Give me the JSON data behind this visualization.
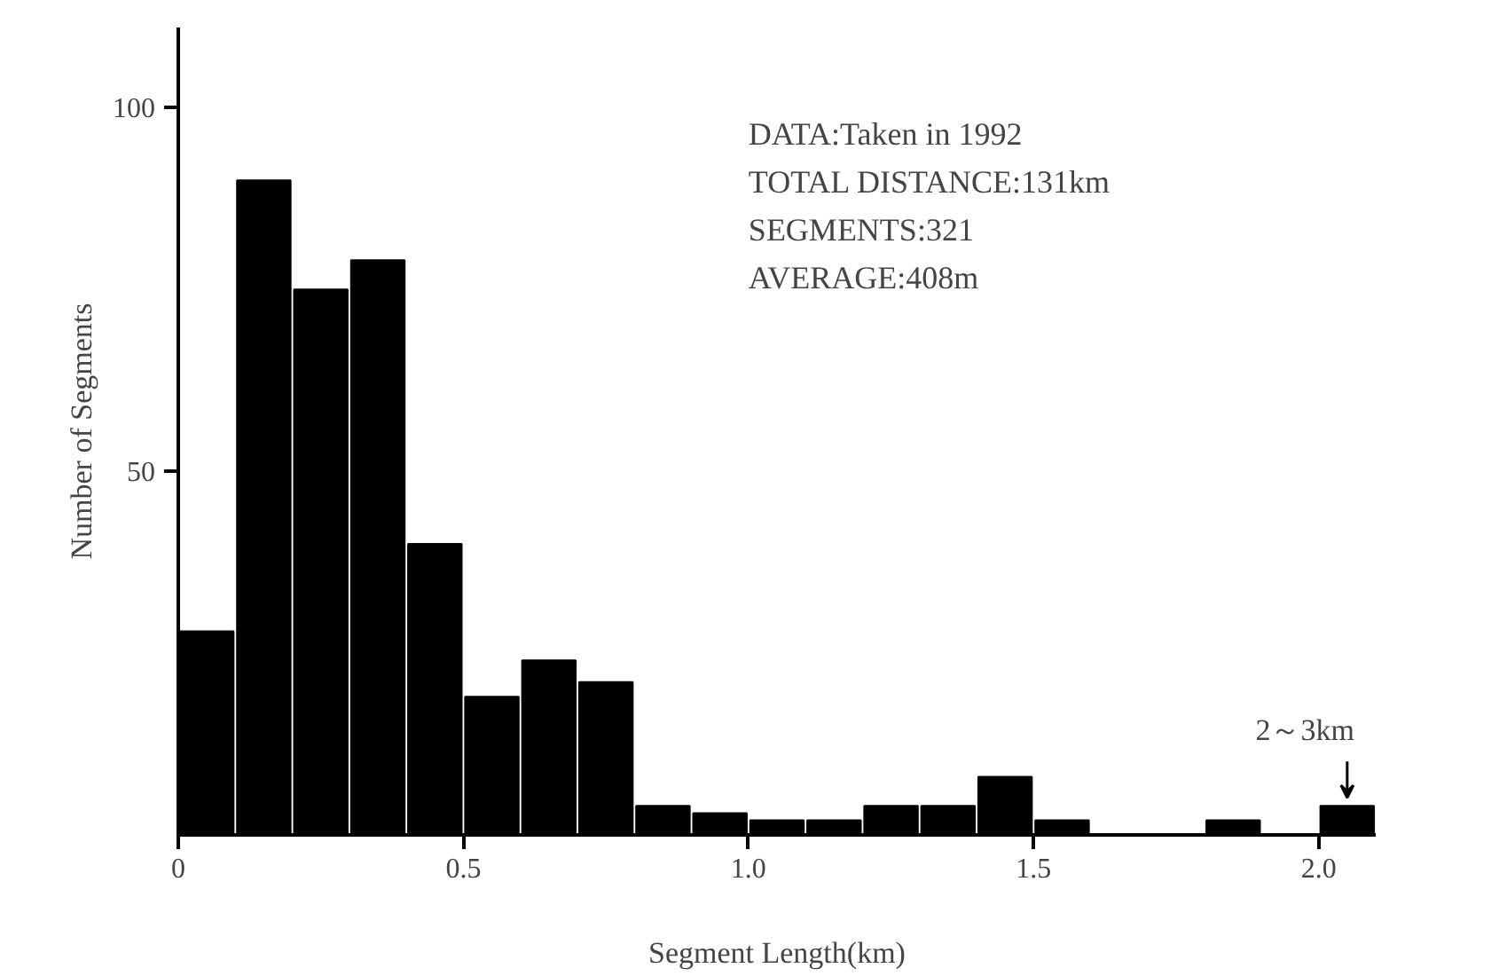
{
  "chart_data": {
    "type": "histogram",
    "xlabel": "Segment Length(km)",
    "ylabel": "Number of Segments",
    "bins": [
      0,
      0.1,
      0.2,
      0.3,
      0.4,
      0.5,
      0.6,
      0.7,
      0.8,
      0.9,
      1.0,
      1.1,
      1.2,
      1.3,
      1.4,
      1.5,
      1.6,
      1.7,
      1.8,
      1.9,
      2.0,
      2.1
    ],
    "values": [
      28,
      90,
      75,
      79,
      40,
      19,
      24,
      21,
      4,
      3,
      2,
      2,
      4,
      4,
      8,
      2,
      0,
      0,
      2,
      0,
      4
    ],
    "color": "#000000",
    "xlim": [
      0,
      2.1
    ],
    "ylim": [
      0,
      111
    ],
    "xticks": [
      0,
      0.5,
      {
        "value": 1.0,
        "label": "1.0"
      },
      1.5,
      {
        "value": 2.0,
        "label": "2.0"
      }
    ],
    "yticks": [
      50,
      100
    ],
    "grid": false,
    "annotations": [
      "DATA:Taken in 1992",
      "TOTAL DISTANCE:131km",
      "SEGMENTS:321",
      "AVERAGE:408m",
      {
        "text": "2～3km",
        "x": 2.05,
        "y": 4
      }
    ]
  }
}
